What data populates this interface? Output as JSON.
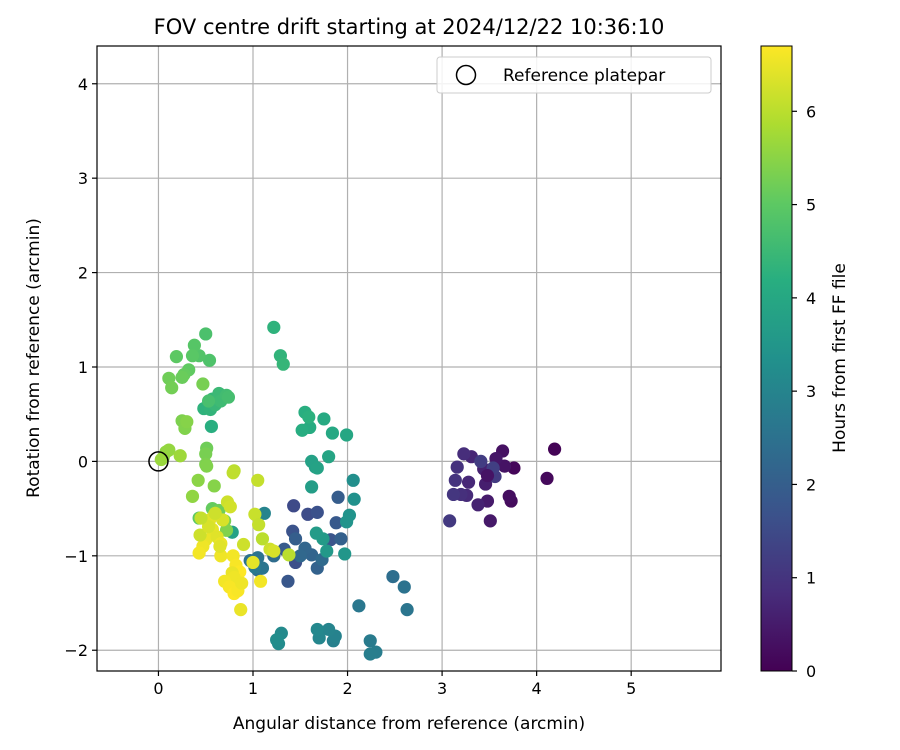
{
  "chart_data": {
    "type": "scatter",
    "title": "FOV centre drift starting at 2024/12/22 10:36:10",
    "xlabel": "Angular distance from reference (arcmin)",
    "ylabel": "Rotation from reference (arcmin)",
    "xlim": [
      -0.65,
      5.95
    ],
    "ylim": [
      -2.22,
      4.4
    ],
    "xticks": [
      0,
      1,
      2,
      3,
      4,
      5
    ],
    "yticks": [
      -2,
      -1,
      0,
      1,
      2,
      3,
      4
    ],
    "xtick_labels": [
      "0",
      "1",
      "2",
      "3",
      "4",
      "5"
    ],
    "ytick_labels": [
      "−2",
      "−1",
      "0",
      "1",
      "2",
      "3",
      "4"
    ],
    "grid": true,
    "legend": {
      "placement": "top-right",
      "entries": [
        "Reference platepar"
      ]
    },
    "reference_point": {
      "x": 0,
      "y": 0,
      "label": "Reference platepar"
    },
    "colorbar": {
      "label": "Hours from first FF file",
      "colormap": "viridis",
      "range": [
        0,
        6.7
      ],
      "ticks": [
        0,
        1,
        2,
        3,
        4,
        5,
        6
      ],
      "tick_labels": [
        "0",
        "1",
        "2",
        "3",
        "4",
        "5",
        "6"
      ]
    },
    "series": [
      {
        "value_field": "hours",
        "points": [
          {
            "x": 4.19,
            "y": 0.13,
            "c": 0.05
          },
          {
            "x": 4.11,
            "y": -0.18,
            "c": 0.15
          },
          {
            "x": 3.73,
            "y": -0.42,
            "c": 0.2
          },
          {
            "x": 3.71,
            "y": -0.37,
            "c": 0.25
          },
          {
            "x": 3.76,
            "y": -0.07,
            "c": 0.1
          },
          {
            "x": 3.64,
            "y": 0.11,
            "c": 0.3
          },
          {
            "x": 3.66,
            "y": -0.05,
            "c": 0.35
          },
          {
            "x": 3.57,
            "y": 0.03,
            "c": 0.4
          },
          {
            "x": 3.51,
            "y": -0.63,
            "c": 0.45
          },
          {
            "x": 3.48,
            "y": -0.42,
            "c": 0.5
          },
          {
            "x": 3.46,
            "y": -0.24,
            "c": 0.55
          },
          {
            "x": 3.44,
            "y": -0.08,
            "c": 0.6
          },
          {
            "x": 3.38,
            "y": -0.46,
            "c": 0.65
          },
          {
            "x": 3.31,
            "y": 0.05,
            "c": 0.7
          },
          {
            "x": 3.28,
            "y": -0.22,
            "c": 0.75
          },
          {
            "x": 3.26,
            "y": -0.36,
            "c": 0.8
          },
          {
            "x": 3.23,
            "y": 0.08,
            "c": 0.85
          },
          {
            "x": 3.2,
            "y": -0.35,
            "c": 0.9
          },
          {
            "x": 3.16,
            "y": -0.06,
            "c": 0.95
          },
          {
            "x": 3.14,
            "y": -0.2,
            "c": 1.0
          },
          {
            "x": 3.12,
            "y": -0.35,
            "c": 1.05
          },
          {
            "x": 3.08,
            "y": -0.63,
            "c": 1.1
          },
          {
            "x": 3.56,
            "y": -0.16,
            "c": 1.15
          },
          {
            "x": 3.41,
            "y": 0.0,
            "c": 1.2
          },
          {
            "x": 3.54,
            "y": -0.07,
            "c": 1.25
          },
          {
            "x": 3.48,
            "y": -0.15,
            "c": 0.35
          },
          {
            "x": 1.43,
            "y": -0.47,
            "c": 1.5
          },
          {
            "x": 1.45,
            "y": -1.07,
            "c": 1.6
          },
          {
            "x": 1.42,
            "y": -0.74,
            "c": 1.7
          },
          {
            "x": 1.37,
            "y": -1.27,
            "c": 1.8
          },
          {
            "x": 1.33,
            "y": -0.93,
            "c": 1.9
          },
          {
            "x": 1.45,
            "y": -0.82,
            "c": 2.0
          },
          {
            "x": 1.58,
            "y": -0.56,
            "c": 1.55
          },
          {
            "x": 1.68,
            "y": -0.54,
            "c": 1.65
          },
          {
            "x": 1.82,
            "y": -0.83,
            "c": 1.75
          },
          {
            "x": 1.88,
            "y": -0.65,
            "c": 1.85
          },
          {
            "x": 1.9,
            "y": -0.38,
            "c": 1.95
          },
          {
            "x": 1.93,
            "y": -0.82,
            "c": 2.05
          },
          {
            "x": 1.68,
            "y": -1.13,
            "c": 2.1
          },
          {
            "x": 1.62,
            "y": -0.99,
            "c": 2.15
          },
          {
            "x": 1.55,
            "y": -0.92,
            "c": 2.2
          },
          {
            "x": 1.5,
            "y": -1.0,
            "c": 2.25
          },
          {
            "x": 1.73,
            "y": -1.04,
            "c": 2.3
          },
          {
            "x": 1.22,
            "y": -1.0,
            "c": 2.35
          },
          {
            "x": 1.05,
            "y": -1.15,
            "c": 2.45
          },
          {
            "x": 0.97,
            "y": -1.05,
            "c": 2.5
          },
          {
            "x": 1.05,
            "y": -1.02,
            "c": 2.55
          },
          {
            "x": 1.1,
            "y": -1.13,
            "c": 2.6
          },
          {
            "x": 1.02,
            "y": -1.12,
            "c": 2.7
          },
          {
            "x": 2.48,
            "y": -1.22,
            "c": 2.4
          },
          {
            "x": 2.6,
            "y": -1.33,
            "c": 2.5
          },
          {
            "x": 2.63,
            "y": -1.57,
            "c": 2.6
          },
          {
            "x": 2.12,
            "y": -1.53,
            "c": 2.65
          },
          {
            "x": 2.24,
            "y": -1.9,
            "c": 2.75
          },
          {
            "x": 2.3,
            "y": -2.02,
            "c": 2.8
          },
          {
            "x": 2.24,
            "y": -2.04,
            "c": 2.85
          },
          {
            "x": 1.85,
            "y": -1.9,
            "c": 2.9
          },
          {
            "x": 1.87,
            "y": -1.85,
            "c": 2.95
          },
          {
            "x": 1.8,
            "y": -1.78,
            "c": 3.0
          },
          {
            "x": 1.7,
            "y": -1.87,
            "c": 3.05
          },
          {
            "x": 1.68,
            "y": -1.78,
            "c": 3.1
          },
          {
            "x": 1.3,
            "y": -1.82,
            "c": 3.15
          },
          {
            "x": 1.27,
            "y": -1.93,
            "c": 3.2
          },
          {
            "x": 1.25,
            "y": -1.89,
            "c": 3.25
          },
          {
            "x": 1.12,
            "y": -0.55,
            "c": 3.0
          },
          {
            "x": 2.06,
            "y": -0.2,
            "c": 3.3
          },
          {
            "x": 2.07,
            "y": -0.4,
            "c": 3.35
          },
          {
            "x": 2.02,
            "y": -0.57,
            "c": 3.4
          },
          {
            "x": 1.99,
            "y": -0.64,
            "c": 3.45
          },
          {
            "x": 1.97,
            "y": -0.98,
            "c": 3.5
          },
          {
            "x": 1.78,
            "y": -0.95,
            "c": 3.55
          },
          {
            "x": 1.74,
            "y": -0.82,
            "c": 3.6
          },
          {
            "x": 1.67,
            "y": -0.76,
            "c": 3.65
          },
          {
            "x": 1.62,
            "y": -0.27,
            "c": 3.7
          },
          {
            "x": 1.66,
            "y": -0.06,
            "c": 3.75
          },
          {
            "x": 1.62,
            "y": 0.0,
            "c": 3.8
          },
          {
            "x": 1.68,
            "y": -0.07,
            "c": 3.85
          },
          {
            "x": 1.8,
            "y": 0.05,
            "c": 3.9
          },
          {
            "x": 1.99,
            "y": 0.28,
            "c": 3.95
          },
          {
            "x": 1.84,
            "y": 0.3,
            "c": 4.0
          },
          {
            "x": 1.75,
            "y": 0.45,
            "c": 4.05
          },
          {
            "x": 1.6,
            "y": 0.36,
            "c": 4.1
          },
          {
            "x": 1.52,
            "y": 0.33,
            "c": 4.15
          },
          {
            "x": 1.55,
            "y": 0.52,
            "c": 4.2
          },
          {
            "x": 1.59,
            "y": 0.47,
            "c": 4.25
          },
          {
            "x": 1.22,
            "y": 1.42,
            "c": 4.3
          },
          {
            "x": 1.29,
            "y": 1.12,
            "c": 4.35
          },
          {
            "x": 1.32,
            "y": 1.03,
            "c": 4.4
          },
          {
            "x": 0.56,
            "y": 0.37,
            "c": 4.2
          },
          {
            "x": 0.48,
            "y": 0.56,
            "c": 4.3
          },
          {
            "x": 0.55,
            "y": 0.55,
            "c": 4.35
          },
          {
            "x": 0.57,
            "y": 0.66,
            "c": 4.4
          },
          {
            "x": 0.6,
            "y": 0.6,
            "c": 4.45
          },
          {
            "x": 0.64,
            "y": 0.72,
            "c": 4.5
          },
          {
            "x": 0.66,
            "y": 0.64,
            "c": 4.55
          },
          {
            "x": 0.72,
            "y": 0.7,
            "c": 4.6
          },
          {
            "x": 0.74,
            "y": 0.68,
            "c": 4.65
          },
          {
            "x": 0.53,
            "y": 0.64,
            "c": 4.7
          },
          {
            "x": 0.5,
            "y": 1.35,
            "c": 4.75
          },
          {
            "x": 0.54,
            "y": 1.07,
            "c": 4.8
          },
          {
            "x": 0.43,
            "y": 1.12,
            "c": 4.85
          },
          {
            "x": 0.38,
            "y": 1.23,
            "c": 4.9
          },
          {
            "x": 0.36,
            "y": 1.12,
            "c": 4.95
          },
          {
            "x": 0.19,
            "y": 1.11,
            "c": 5.0
          },
          {
            "x": 0.32,
            "y": 0.97,
            "c": 5.05
          },
          {
            "x": 0.27,
            "y": 0.92,
            "c": 5.1
          },
          {
            "x": 0.25,
            "y": 0.89,
            "c": 5.15
          },
          {
            "x": 0.11,
            "y": 0.88,
            "c": 5.2
          },
          {
            "x": 0.14,
            "y": 0.78,
            "c": 5.25
          },
          {
            "x": 0.47,
            "y": 0.82,
            "c": 5.3
          },
          {
            "x": 0.25,
            "y": 0.43,
            "c": 5.35
          },
          {
            "x": 0.28,
            "y": 0.35,
            "c": 5.4
          },
          {
            "x": 0.3,
            "y": 0.42,
            "c": 5.45
          },
          {
            "x": 0.05,
            "y": 0.04,
            "c": 5.5
          },
          {
            "x": 0.08,
            "y": 0.1,
            "c": 5.55
          },
          {
            "x": 0.11,
            "y": 0.12,
            "c": 5.6
          },
          {
            "x": 0.03,
            "y": 0.02,
            "c": 5.65
          },
          {
            "x": 0.23,
            "y": 0.06,
            "c": 5.7
          },
          {
            "x": 0.51,
            "y": 0.14,
            "c": 5.2
          },
          {
            "x": 0.5,
            "y": 0.08,
            "c": 5.3
          },
          {
            "x": 0.5,
            "y": -0.03,
            "c": 5.35
          },
          {
            "x": 0.51,
            "y": -0.05,
            "c": 5.4
          },
          {
            "x": 0.59,
            "y": -0.26,
            "c": 5.45
          },
          {
            "x": 0.42,
            "y": -0.2,
            "c": 5.5
          },
          {
            "x": 0.36,
            "y": -0.37,
            "c": 5.55
          },
          {
            "x": 0.43,
            "y": -0.6,
            "c": 5.0
          },
          {
            "x": 0.57,
            "y": -0.5,
            "c": 5.1
          },
          {
            "x": 0.64,
            "y": -0.52,
            "c": 5.2
          },
          {
            "x": 0.7,
            "y": -0.63,
            "c": 5.3
          },
          {
            "x": 0.78,
            "y": -0.75,
            "c": 3.8
          },
          {
            "x": 0.72,
            "y": -0.73,
            "c": 5.4
          },
          {
            "x": 0.8,
            "y": -0.1,
            "c": 6.0
          },
          {
            "x": 0.79,
            "y": -0.12,
            "c": 6.05
          },
          {
            "x": 1.05,
            "y": -0.2,
            "c": 6.1
          },
          {
            "x": 1.02,
            "y": -0.56,
            "c": 6.15
          },
          {
            "x": 0.73,
            "y": -0.43,
            "c": 6.2
          },
          {
            "x": 0.76,
            "y": -0.48,
            "c": 6.25
          },
          {
            "x": 0.68,
            "y": -0.62,
            "c": 6.3
          },
          {
            "x": 0.59,
            "y": -0.57,
            "c": 6.35
          },
          {
            "x": 0.54,
            "y": -0.62,
            "c": 6.4
          },
          {
            "x": 0.57,
            "y": -0.72,
            "c": 6.45
          },
          {
            "x": 0.5,
            "y": -0.83,
            "c": 6.5
          },
          {
            "x": 0.47,
            "y": -0.9,
            "c": 6.55
          },
          {
            "x": 0.43,
            "y": -0.97,
            "c": 6.6
          },
          {
            "x": 0.44,
            "y": -0.78,
            "c": 6.2
          },
          {
            "x": 0.53,
            "y": -0.69,
            "c": 6.3
          },
          {
            "x": 0.62,
            "y": -0.8,
            "c": 6.4
          },
          {
            "x": 0.66,
            "y": -0.87,
            "c": 6.5
          },
          {
            "x": 0.66,
            "y": -1.0,
            "c": 6.55
          },
          {
            "x": 0.79,
            "y": -1.0,
            "c": 6.6
          },
          {
            "x": 0.82,
            "y": -1.1,
            "c": 6.65
          },
          {
            "x": 0.86,
            "y": -1.17,
            "c": 6.7
          },
          {
            "x": 0.9,
            "y": -0.88,
            "c": 6.2
          },
          {
            "x": 1.06,
            "y": -0.67,
            "c": 6.1
          },
          {
            "x": 1.1,
            "y": -0.82,
            "c": 6.0
          },
          {
            "x": 1.18,
            "y": -0.93,
            "c": 6.2
          },
          {
            "x": 1.22,
            "y": -0.95,
            "c": 6.3
          },
          {
            "x": 1.38,
            "y": -0.99,
            "c": 6.0
          },
          {
            "x": 0.78,
            "y": -1.18,
            "c": 6.5
          },
          {
            "x": 0.8,
            "y": -1.23,
            "c": 6.55
          },
          {
            "x": 0.7,
            "y": -1.27,
            "c": 6.6
          },
          {
            "x": 0.75,
            "y": -1.33,
            "c": 6.65
          },
          {
            "x": 0.8,
            "y": -1.4,
            "c": 6.7
          },
          {
            "x": 0.84,
            "y": -1.37,
            "c": 6.65
          },
          {
            "x": 0.87,
            "y": -1.57,
            "c": 6.5
          },
          {
            "x": 1.08,
            "y": -1.27,
            "c": 6.6
          },
          {
            "x": 1.0,
            "y": -1.07,
            "c": 6.45
          },
          {
            "x": 0.88,
            "y": -1.29,
            "c": 6.55
          },
          {
            "x": 0.45,
            "y": -0.6,
            "c": 6.1
          },
          {
            "x": 0.6,
            "y": -0.55,
            "c": 6.2
          },
          {
            "x": 0.65,
            "y": -0.9,
            "c": 6.4
          }
        ]
      }
    ]
  }
}
